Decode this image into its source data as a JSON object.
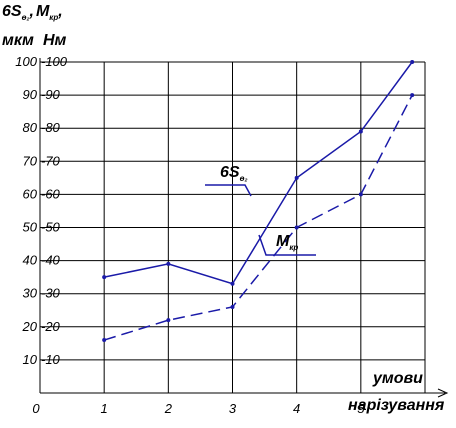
{
  "chart_data": {
    "type": "line",
    "y_head_left": {
      "main": "6S",
      "sub": "ө₂"
    },
    "y_head_right": {
      "main": "M",
      "sub": "кр"
    },
    "y_head_sep": ",",
    "y_head_tail": ",",
    "y_unit_left": "мкм",
    "y_unit_right": "Нм",
    "x_title_line1": "умови",
    "x_title_line2": "нарізування",
    "origin_label": "0",
    "x_ticks": [
      "1",
      "2",
      "3",
      "4",
      "5"
    ],
    "y_ticks_left": [
      "10",
      "20",
      "30",
      "40",
      "50",
      "60",
      "70",
      "80",
      "90",
      "100"
    ],
    "y_ticks_right": [
      "10",
      "20",
      "30",
      "40",
      "50",
      "60",
      "70",
      "80",
      "90",
      "100"
    ],
    "xlim": [
      0,
      6
    ],
    "ylim": [
      0,
      100
    ],
    "grid": true,
    "series": [
      {
        "label": {
          "main": "6S",
          "sub": "ө₂"
        },
        "style": "solid",
        "color": "#1a1aa8",
        "x": [
          1,
          2,
          3,
          4,
          5,
          5.8
        ],
        "y": [
          35,
          39,
          33,
          65,
          79,
          100
        ]
      },
      {
        "label": {
          "main": "M",
          "sub": "кр"
        },
        "style": "dashed",
        "color": "#1a1aa8",
        "x": [
          1,
          2,
          3,
          4,
          5,
          5.8
        ],
        "y": [
          16,
          22,
          26,
          50,
          60,
          90
        ]
      }
    ]
  }
}
